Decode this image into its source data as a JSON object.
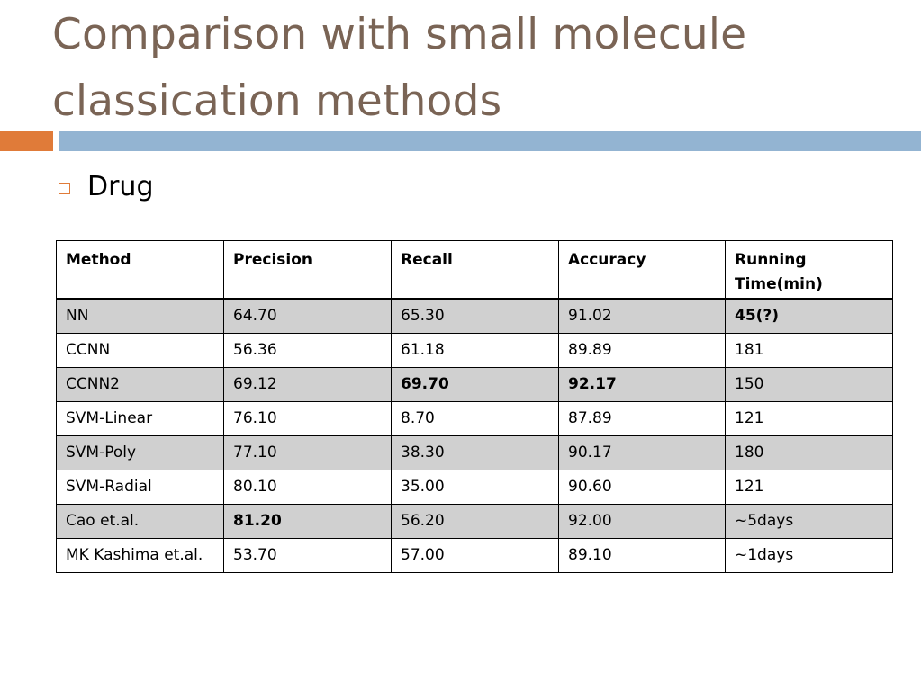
{
  "slide": {
    "title_line1": "Comparison with small molecule",
    "title_line2": "classication methods",
    "bullet": "Drug"
  },
  "colors": {
    "title": "#7a6455",
    "accent_orange": "#e07b39",
    "accent_blue": "#93b4d2",
    "shaded_row": "#d0d0d0"
  },
  "table": {
    "headers": [
      "Method",
      "Precision",
      "Recall",
      "Accuracy",
      "Running Time(min)"
    ],
    "rows": [
      {
        "cells": [
          "NN",
          "64.70",
          "65.30",
          "91.02",
          "45(?)"
        ],
        "bold": [
          false,
          false,
          false,
          false,
          true
        ],
        "shaded": true
      },
      {
        "cells": [
          "CCNN",
          "56.36",
          "61.18",
          "89.89",
          "181"
        ],
        "bold": [
          false,
          false,
          false,
          false,
          false
        ],
        "shaded": false
      },
      {
        "cells": [
          "CCNN2",
          "69.12",
          "69.70",
          "92.17",
          "150"
        ],
        "bold": [
          false,
          false,
          true,
          true,
          false
        ],
        "shaded": true
      },
      {
        "cells": [
          "SVM-Linear",
          "76.10",
          "8.70",
          "87.89",
          "121"
        ],
        "bold": [
          false,
          false,
          false,
          false,
          false
        ],
        "shaded": false
      },
      {
        "cells": [
          "SVM-Poly",
          "77.10",
          "38.30",
          "90.17",
          "180"
        ],
        "bold": [
          false,
          false,
          false,
          false,
          false
        ],
        "shaded": true
      },
      {
        "cells": [
          "SVM-Radial",
          "80.10",
          "35.00",
          "90.60",
          "121"
        ],
        "bold": [
          false,
          false,
          false,
          false,
          false
        ],
        "shaded": false
      },
      {
        "cells": [
          "Cao et.al.",
          "81.20",
          "56.20",
          "92.00",
          "~5days"
        ],
        "bold": [
          false,
          true,
          false,
          false,
          false
        ],
        "shaded": true
      },
      {
        "cells": [
          "MK Kashima et.al.",
          "53.70",
          "57.00",
          "89.10",
          "~1days"
        ],
        "bold": [
          false,
          false,
          false,
          false,
          false
        ],
        "shaded": false
      }
    ]
  }
}
